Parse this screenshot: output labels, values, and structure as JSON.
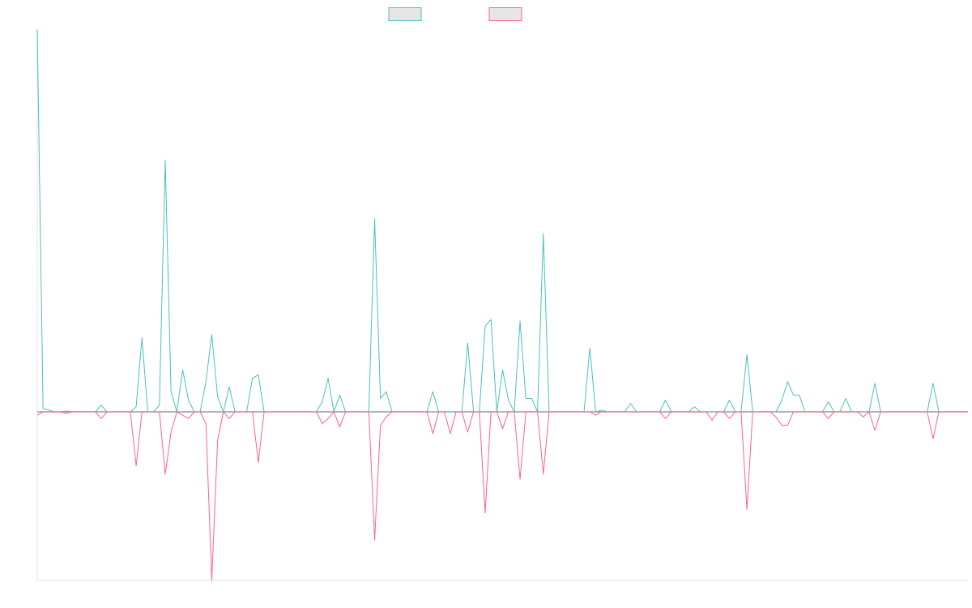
{
  "chart_data": {
    "type": "line",
    "title": "",
    "xlabel": "",
    "ylabel": "",
    "grid": false,
    "legend": "top-center",
    "x_count": 160,
    "ylim": [
      -100,
      228
    ],
    "zero_baseline": true,
    "series": [
      {
        "name": "",
        "color": "#4bc0c0",
        "fill": "rgba(230,230,230,1)",
        "peaks": [
          [
            0,
            228
          ],
          [
            1,
            2
          ],
          [
            2,
            1
          ],
          [
            5,
            0.5
          ],
          [
            11,
            4
          ],
          [
            17,
            3
          ],
          [
            18,
            44
          ],
          [
            21,
            4
          ],
          [
            22,
            150
          ],
          [
            23,
            12
          ],
          [
            25,
            25
          ],
          [
            26,
            7
          ],
          [
            29,
            18
          ],
          [
            30,
            46
          ],
          [
            31,
            9
          ],
          [
            33,
            15
          ],
          [
            37,
            20
          ],
          [
            38,
            22
          ],
          [
            49,
            6
          ],
          [
            50,
            20
          ],
          [
            52,
            10
          ],
          [
            58,
            115
          ],
          [
            59,
            8
          ],
          [
            60,
            12
          ],
          [
            68,
            12
          ],
          [
            74,
            41
          ],
          [
            77,
            51
          ],
          [
            78,
            55
          ],
          [
            80,
            25
          ],
          [
            81,
            7
          ],
          [
            83,
            54
          ],
          [
            84,
            8
          ],
          [
            85,
            8
          ],
          [
            87,
            106
          ],
          [
            95,
            38
          ],
          [
            97,
            1
          ],
          [
            102,
            5
          ],
          [
            108,
            7
          ],
          [
            113,
            3
          ],
          [
            119,
            7
          ],
          [
            122,
            34
          ],
          [
            128,
            7
          ],
          [
            129,
            18
          ],
          [
            130,
            10
          ],
          [
            131,
            10
          ],
          [
            136,
            6
          ],
          [
            139,
            8
          ],
          [
            144,
            17
          ],
          [
            154,
            17
          ],
          [
            160,
            0
          ]
        ]
      },
      {
        "name": "",
        "color": "#ff6384",
        "fill": "rgba(230,230,230,1)",
        "peaks": [
          [
            0,
            -2
          ],
          [
            5,
            -1
          ],
          [
            11,
            -4
          ],
          [
            17,
            -32
          ],
          [
            22,
            -37
          ],
          [
            23,
            -12
          ],
          [
            25,
            -2
          ],
          [
            26,
            -4
          ],
          [
            29,
            -7
          ],
          [
            30,
            -100
          ],
          [
            31,
            -17
          ],
          [
            33,
            -4
          ],
          [
            38,
            -30
          ],
          [
            49,
            -7
          ],
          [
            50,
            -4
          ],
          [
            52,
            -9
          ],
          [
            58,
            -76
          ],
          [
            59,
            -8
          ],
          [
            60,
            -3
          ],
          [
            68,
            -13
          ],
          [
            71,
            -13
          ],
          [
            74,
            -12
          ],
          [
            77,
            -60
          ],
          [
            80,
            -10
          ],
          [
            83,
            -40
          ],
          [
            87,
            -37
          ],
          [
            96,
            -2
          ],
          [
            108,
            -4
          ],
          [
            116,
            -5
          ],
          [
            119,
            -4
          ],
          [
            122,
            -58
          ],
          [
            127,
            -3
          ],
          [
            128,
            -8
          ],
          [
            129,
            -8
          ],
          [
            136,
            -4
          ],
          [
            142,
            -3
          ],
          [
            144,
            -11
          ],
          [
            154,
            -16
          ],
          [
            160,
            0
          ]
        ]
      }
    ]
  }
}
